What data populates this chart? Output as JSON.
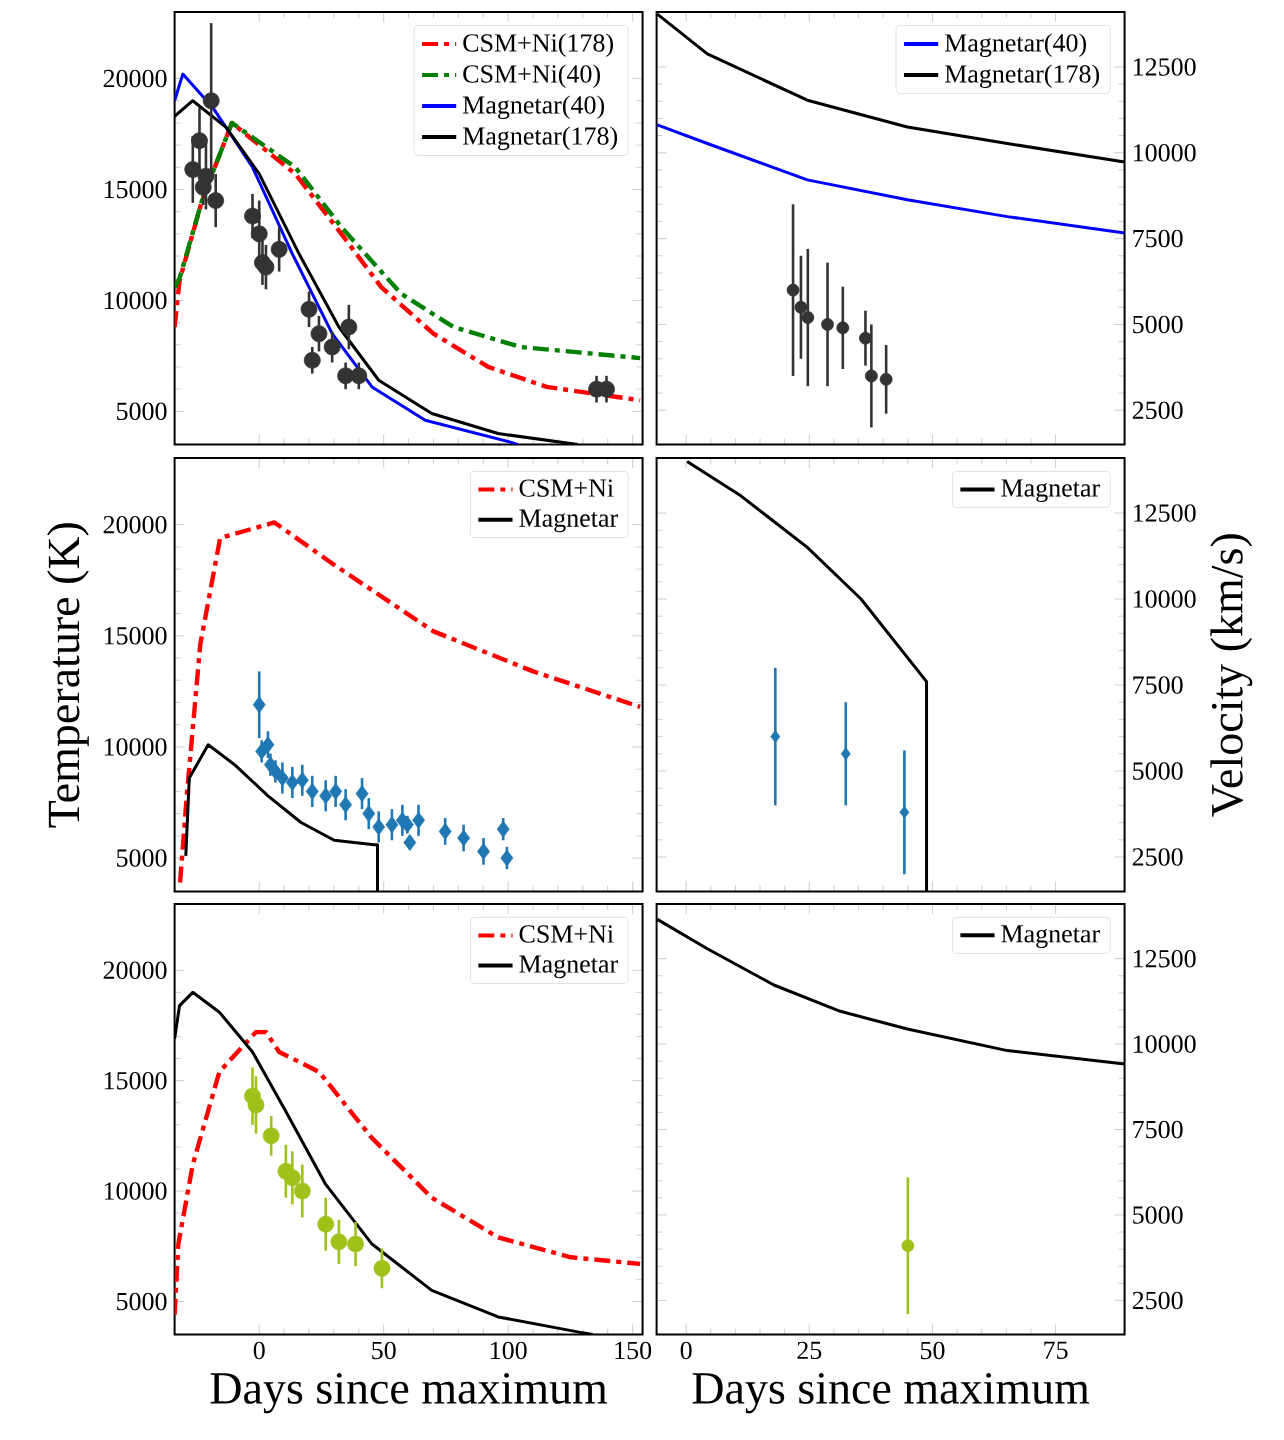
{
  "chart_data": [
    {
      "type": "line",
      "xlim": [
        -34,
        154
      ],
      "ylim": [
        3500,
        23000
      ],
      "xticks": [
        0,
        50,
        100,
        150
      ],
      "yticks": [
        5000,
        10000,
        15000,
        20000
      ],
      "tick_labels": "y",
      "legend": "top right",
      "series": [
        {
          "name": "CSM+Ni(178)",
          "color": "#ff0000",
          "line_style": "dashdot",
          "x": [
            -34,
            -32,
            -23,
            -11,
            14.5,
            33,
            49,
            70,
            92,
            115.5,
            153
          ],
          "values": [
            8800,
            10900,
            14500,
            18000,
            15700,
            13000,
            10600,
            8500,
            7000,
            6100,
            5500
          ]
        },
        {
          "name": "CSM+Ni(40)",
          "color": "#008000",
          "line_style": "dashdot",
          "x": [
            -34,
            -32,
            -23,
            -11,
            14.5,
            33,
            57,
            78,
            105,
            153
          ],
          "values": [
            10600,
            11000,
            14500,
            18000,
            16000,
            13300,
            10300,
            8800,
            7900,
            7400
          ]
        },
        {
          "name": "Magnetar(40)",
          "color": "#0000ff",
          "line_style": "solid",
          "x": [
            -34,
            -30.7,
            -18.7,
            -2.7,
            13.3,
            29.3,
            45.3,
            66.7,
            101.3,
            104
          ],
          "values": [
            19000,
            20200,
            18700,
            16000,
            12100,
            8500,
            6100,
            4600,
            3600,
            3500
          ]
        },
        {
          "name": "Magnetar(178)",
          "color": "#000000",
          "line_style": "solid",
          "x": [
            -34,
            -26.7,
            -13.3,
            0,
            16,
            32,
            48,
            69.3,
            96,
            128
          ],
          "values": [
            18300,
            19000,
            17800,
            15700,
            12100,
            8800,
            6400,
            4900,
            4000,
            3500
          ]
        },
        {
          "type": "scatter",
          "color": "#333333",
          "marker": "circle",
          "x": [
            -26.7,
            -24,
            -21.4,
            -19.3,
            -22.5,
            -17.5,
            -2.7,
            0,
            1.3,
            2.7,
            8,
            20,
            21.3,
            24,
            29.3,
            36,
            34.7,
            40,
            135.5,
            139.5
          ],
          "values": [
            15900,
            17200,
            15600,
            19000,
            15100,
            14500,
            13800,
            13000,
            11700,
            11500,
            12300,
            9600,
            7300,
            8500,
            7900,
            8800,
            6600,
            6600,
            6000,
            6000
          ],
          "errors": [
            1500,
            1500,
            1500,
            3500,
            800,
            1200,
            1000,
            1500,
            1000,
            1000,
            1000,
            800,
            600,
            800,
            700,
            1000,
            600,
            600,
            600,
            600
          ]
        }
      ]
    },
    {
      "type": "line",
      "xlim": [
        -6,
        89
      ],
      "ylim": [
        1500,
        14100
      ],
      "xticks": [
        0,
        25,
        50,
        75
      ],
      "yticks": [
        2500,
        5000,
        7500,
        10000,
        12500
      ],
      "tick_labels": "y",
      "legend": "top right",
      "series": [
        {
          "name": "Magnetar(40)",
          "color": "#0000ff",
          "line_style": "solid",
          "x": [
            -5.85,
            4.3,
            24.6,
            44.9,
            65.2,
            89
          ],
          "values": [
            10810,
            10270,
            9210,
            8630,
            8140,
            7660
          ]
        },
        {
          "name": "Magnetar(178)",
          "color": "#000000",
          "line_style": "solid",
          "x": [
            -5.85,
            4.3,
            24.6,
            44.9,
            65.2,
            89
          ],
          "values": [
            14040,
            12880,
            11530,
            10750,
            10270,
            9730
          ]
        },
        {
          "type": "scatter",
          "color": "#333333",
          "marker": "circle",
          "x": [
            21.7,
            23.3,
            24.7,
            28.7,
            31.8,
            36.4,
            37.6,
            40.6
          ],
          "values": [
            6000,
            5500,
            5200,
            5000,
            4900,
            4600,
            3500,
            3400
          ],
          "errors": [
            2500,
            1500,
            2000,
            1800,
            1200,
            800,
            1500,
            1000
          ]
        }
      ]
    },
    {
      "type": "line",
      "xlim": [
        -34,
        154
      ],
      "ylim": [
        3500,
        23000
      ],
      "xticks": [
        0,
        50,
        100,
        150
      ],
      "yticks": [
        5000,
        10000,
        15000,
        20000
      ],
      "tick_labels": "y",
      "legend": "top right",
      "ylabel": "Temperature (K)",
      "series": [
        {
          "name": "CSM+Ni",
          "color": "#ff0000",
          "line_style": "dashdot",
          "x": [
            -31.8,
            -29.1,
            -23.7,
            -15.7,
            6.1,
            30,
            70,
            110,
            153
          ],
          "values": [
            3900,
            7800,
            14600,
            19400,
            20100,
            18200,
            15200,
            13400,
            11800
          ]
        },
        {
          "name": "Magnetar",
          "color": "#000000",
          "line_style": "solid",
          "x": [
            -29.5,
            -28.1,
            -20.5,
            -9.9,
            3.5,
            16.8,
            30.1,
            46.1,
            47.5,
            47.5
          ],
          "values": [
            5100,
            8600,
            10100,
            9200,
            7800,
            6600,
            5800,
            5600,
            5600,
            3500
          ]
        },
        {
          "type": "scatter",
          "color": "#1f77b4",
          "marker": "diamond",
          "x": [
            0,
            3.5,
            1,
            4.5,
            6.5,
            9.3,
            13.3,
            17.3,
            21.3,
            26.7,
            30.7,
            34.7,
            41.3,
            44,
            48,
            53.3,
            57.5,
            64,
            59.5,
            60.5,
            74.7,
            82.1,
            90.1,
            98,
            99.5
          ],
          "values": [
            11900,
            10100,
            9800,
            9200,
            8900,
            8600,
            8400,
            8500,
            8000,
            7800,
            8000,
            7400,
            7900,
            7000,
            6400,
            6500,
            6700,
            6700,
            6500,
            5700,
            6200,
            5900,
            5300,
            6300,
            5000
          ],
          "errors": [
            1500,
            600,
            500,
            500,
            500,
            700,
            700,
            700,
            700,
            700,
            700,
            700,
            700,
            700,
            700,
            700,
            700,
            700,
            400,
            300,
            600,
            600,
            600,
            500,
            500
          ]
        }
      ]
    },
    {
      "type": "line",
      "xlim": [
        -6,
        89
      ],
      "ylim": [
        1500,
        14100
      ],
      "xticks": [
        0,
        25,
        50,
        75
      ],
      "yticks": [
        2500,
        5000,
        7500,
        10000,
        12500
      ],
      "tick_labels": "y",
      "legend": "top right",
      "ylabel": "Velocity (km/s)",
      "series": [
        {
          "name": "Magnetar",
          "color": "#000000",
          "line_style": "solid",
          "x": [
            0.2,
            11.1,
            24.6,
            35.5,
            48.8,
            48.8
          ],
          "values": [
            14000,
            13000,
            11500,
            10000,
            7600,
            1500
          ]
        },
        {
          "type": "scatter",
          "color": "#1f77b4",
          "marker": "diamond",
          "x": [
            18.1,
            32.4,
            44.3
          ],
          "values": [
            6000,
            5500,
            3800
          ],
          "errors": [
            2000,
            1500,
            1800
          ]
        }
      ]
    },
    {
      "type": "line",
      "xlim": [
        -34,
        154
      ],
      "ylim": [
        3500,
        23000
      ],
      "xticks": [
        0,
        50,
        100,
        150
      ],
      "yticks": [
        5000,
        10000,
        15000,
        20000
      ],
      "legend": "top right",
      "xlabel": "Days since maximum",
      "series": [
        {
          "name": "CSM+Ni",
          "color": "#ff0000",
          "line_style": "dashdot",
          "x": [
            -34,
            -32.5,
            -26.7,
            -16,
            -1.3,
            2.7,
            8,
            24,
            45.3,
            69.3,
            96,
            125.3,
            153
          ],
          "values": [
            4400,
            7600,
            11200,
            15400,
            17200,
            17200,
            16300,
            15400,
            12400,
            9700,
            7900,
            7000,
            6700
          ]
        },
        {
          "name": "Magnetar",
          "color": "#000000",
          "line_style": "solid",
          "x": [
            -34,
            -32,
            -26.7,
            -16,
            -2.7,
            10.7,
            26.7,
            45.3,
            69.3,
            96,
            129,
            134
          ],
          "values": [
            16900,
            18400,
            19000,
            18100,
            16300,
            13600,
            10300,
            7600,
            5500,
            4300,
            3600,
            3500
          ]
        },
        {
          "type": "scatter",
          "color": "#9fc21a",
          "marker": "circle",
          "x": [
            -2.7,
            -1.3,
            4.8,
            10.7,
            13.3,
            17.3,
            26.7,
            32,
            38.7,
            49.3
          ],
          "values": [
            14300,
            13900,
            12500,
            10900,
            10600,
            10000,
            8500,
            7700,
            7600,
            6500
          ],
          "errors": [
            1300,
            1300,
            900,
            1200,
            1200,
            1200,
            1200,
            1000,
            1000,
            900
          ]
        }
      ]
    },
    {
      "type": "line",
      "xlim": [
        -6,
        89
      ],
      "ylim": [
        1500,
        14100
      ],
      "xticks": [
        0,
        25,
        50,
        75
      ],
      "yticks": [
        2500,
        5000,
        7500,
        10000,
        12500
      ],
      "legend": "top right",
      "xlabel": "Days since maximum",
      "series": [
        {
          "name": "Magnetar",
          "color": "#000000",
          "line_style": "solid",
          "x": [
            -5.85,
            4.3,
            17.8,
            31.3,
            44.9,
            65.2,
            89
          ],
          "values": [
            13650,
            12790,
            11730,
            10960,
            10440,
            9810,
            9420
          ]
        },
        {
          "type": "scatter",
          "color": "#9fc21a",
          "marker": "circle",
          "x": [
            45
          ],
          "values": [
            4100
          ],
          "errors": [
            2000
          ]
        }
      ]
    }
  ]
}
